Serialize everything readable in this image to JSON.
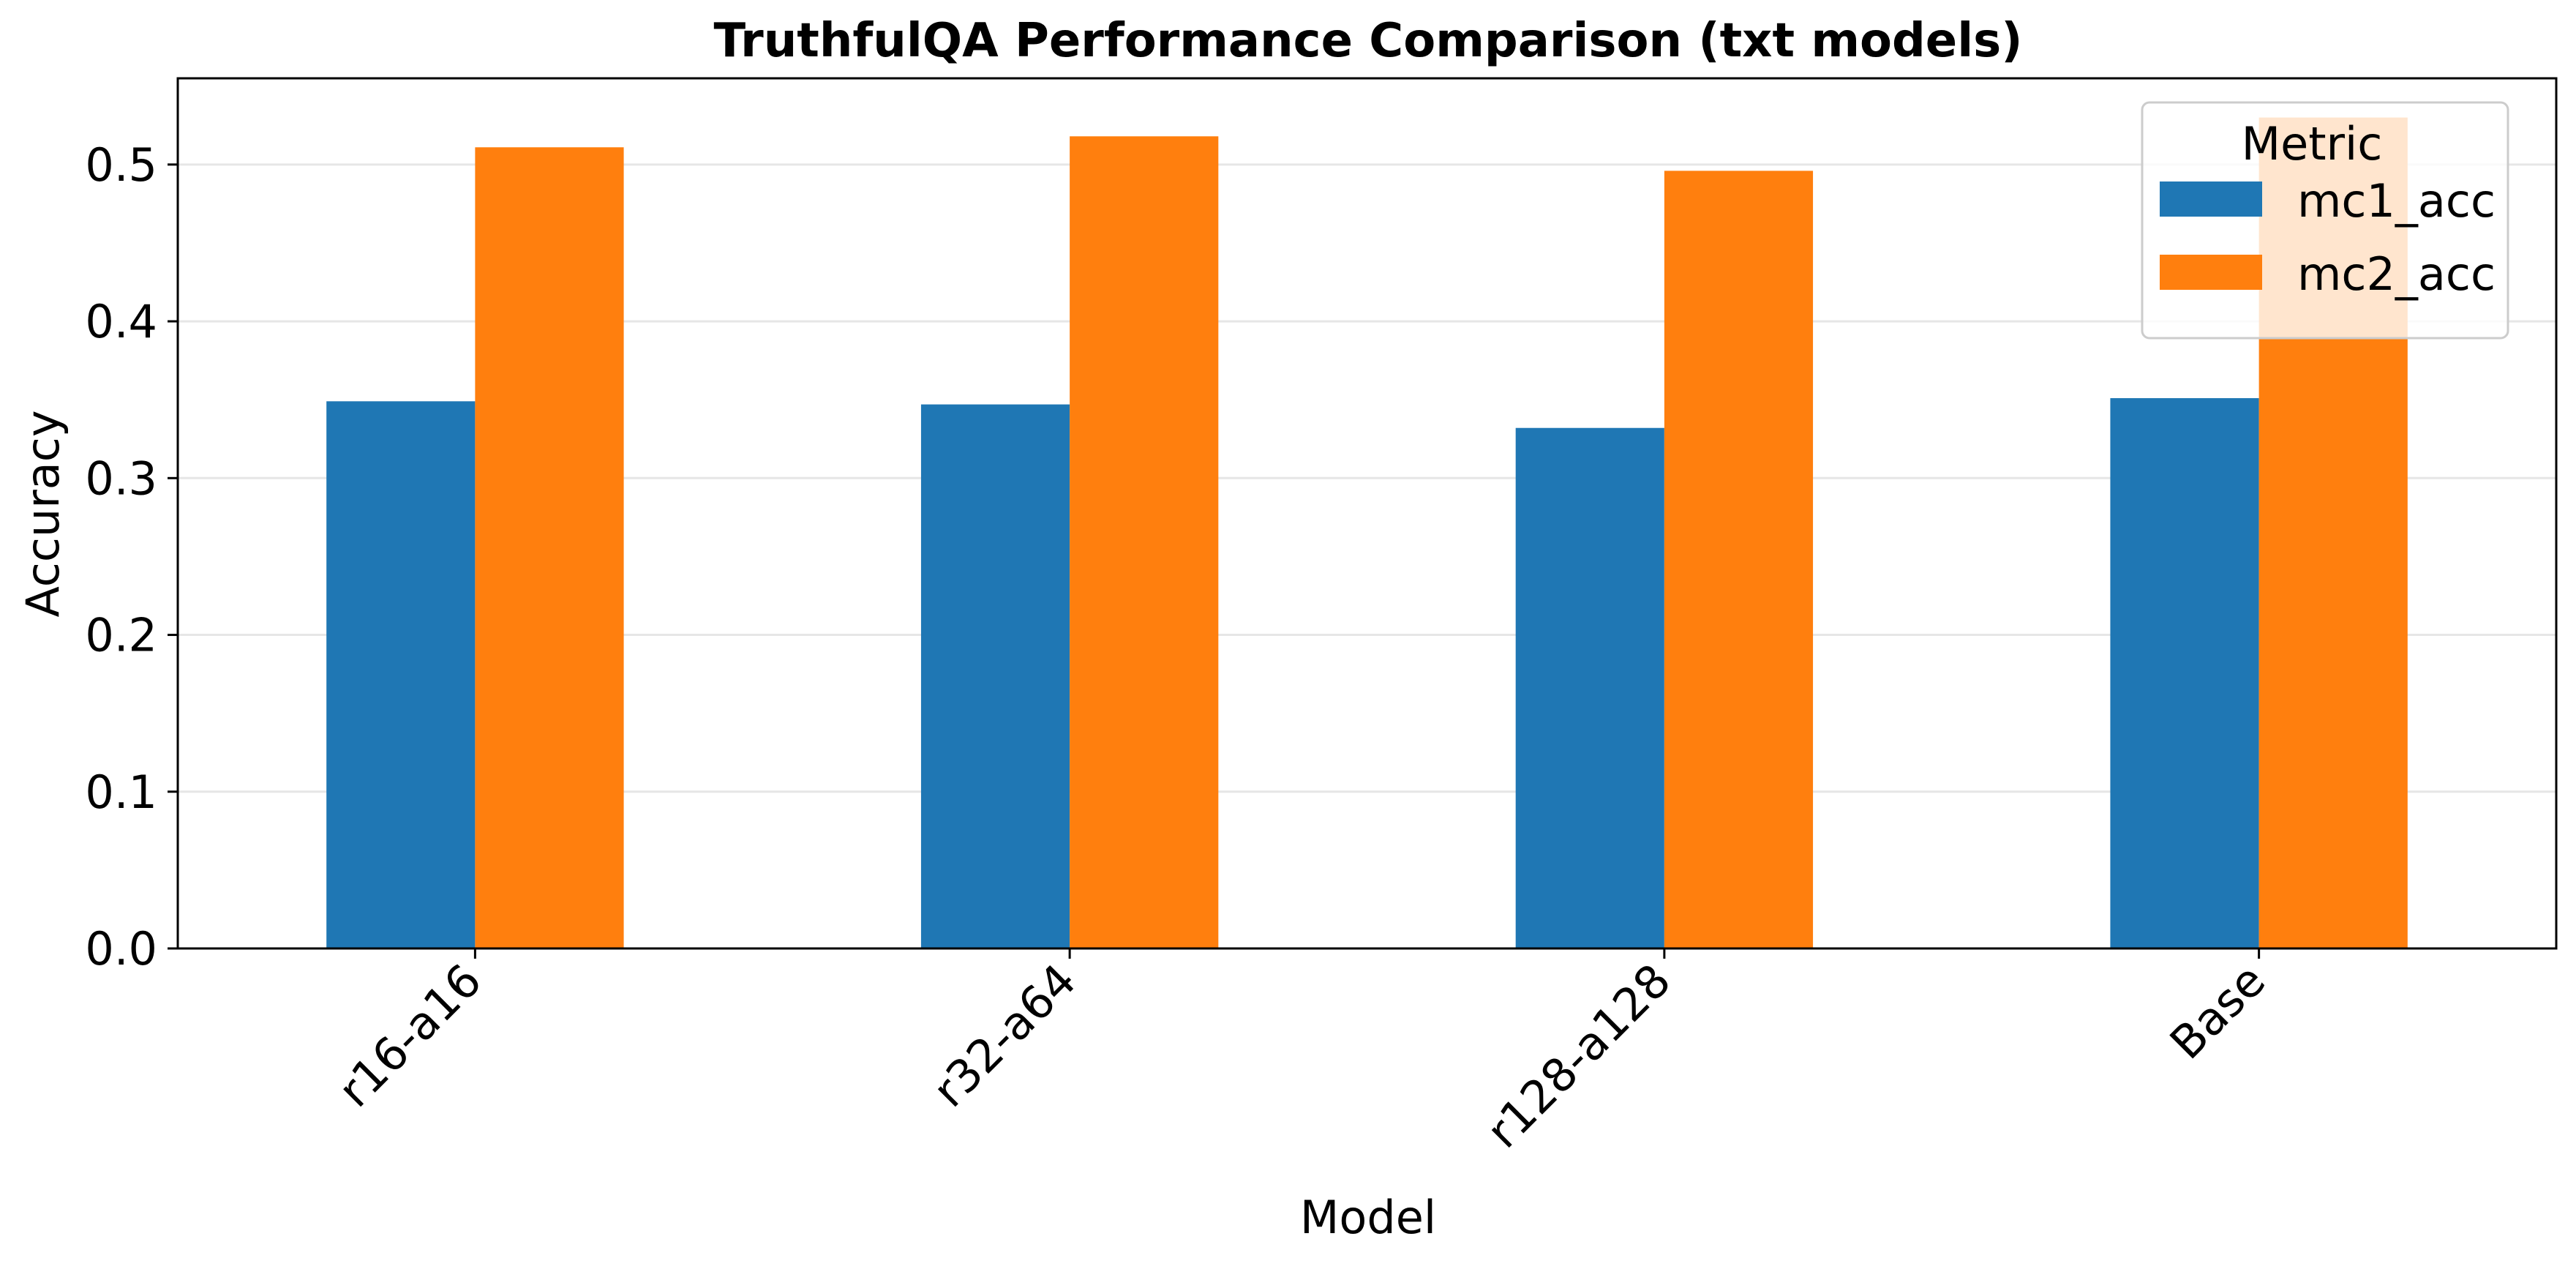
{
  "chart_data": {
    "type": "bar",
    "title": "TruthfulQA Performance Comparison (txt models)",
    "xlabel": "Model",
    "ylabel": "Accuracy",
    "categories": [
      "r16-a16",
      "r32-a64",
      "r128-a128",
      "Base"
    ],
    "series": [
      {
        "name": "mc1_acc",
        "color": "#1f77b4",
        "values": [
          0.349,
          0.347,
          0.332,
          0.351
        ]
      },
      {
        "name": "mc2_acc",
        "color": "#ff7f0e",
        "values": [
          0.511,
          0.518,
          0.496,
          0.53
        ]
      }
    ],
    "ylim": [
      0,
      0.555
    ],
    "yticks": [
      "0.0",
      "0.1",
      "0.2",
      "0.3",
      "0.4",
      "0.5"
    ],
    "grid": "horizontal",
    "legend": {
      "title": "Metric",
      "placement": "top-right"
    }
  }
}
